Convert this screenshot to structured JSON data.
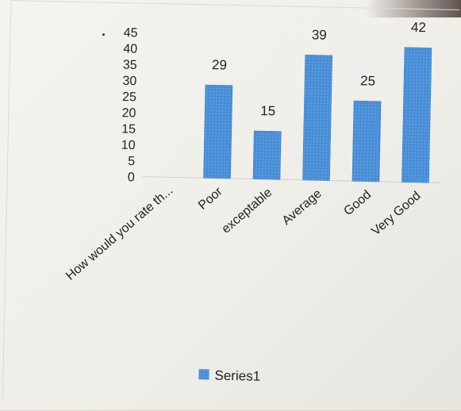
{
  "chart_data": {
    "type": "bar",
    "categories": [
      "How would you rate th...",
      "Poor",
      "exceptable",
      "Average",
      "Good",
      "Very Good"
    ],
    "series": [
      {
        "name": "Series1",
        "values": [
          null,
          29,
          15,
          39,
          25,
          42
        ]
      }
    ],
    "data_labels": [
      "",
      "29",
      "15",
      "39",
      "25",
      "42"
    ],
    "yticks": [
      "0",
      "5",
      "10",
      "15",
      "20",
      "25",
      "30",
      "35",
      "40",
      "45"
    ],
    "ylim": [
      0,
      45
    ],
    "legend": {
      "position": "bottom",
      "entries": [
        "Series1"
      ]
    },
    "bar_color": "#4a90d9",
    "grid": false
  }
}
